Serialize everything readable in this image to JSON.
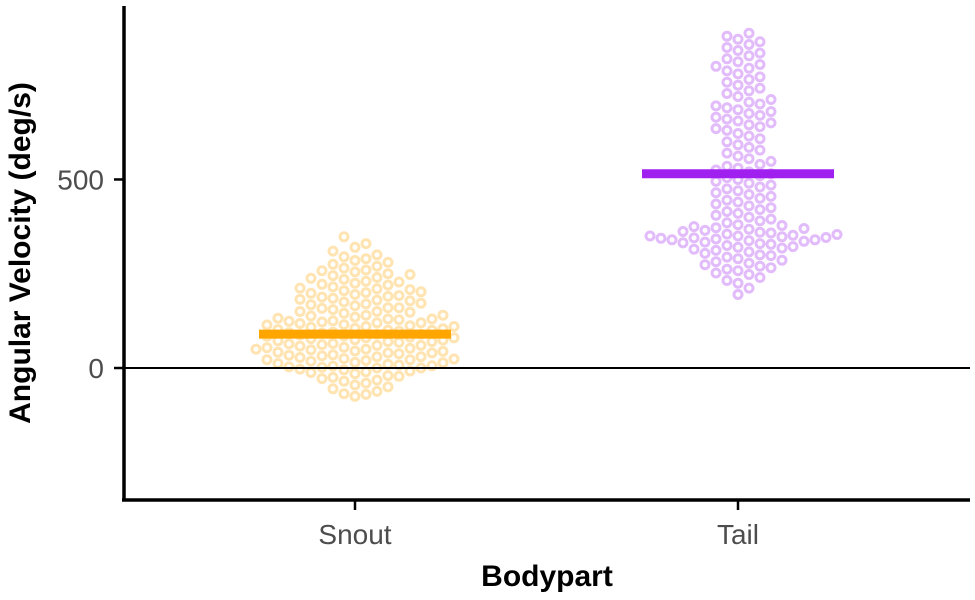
{
  "chart_data": {
    "type": "scatter",
    "subtype": "beeswarm",
    "xlabel": "Bodypart",
    "ylabel": "Angular Velocity (deg/s)",
    "categories": [
      "Snout",
      "Tail"
    ],
    "yticks": [
      0,
      500
    ],
    "ylim": [
      -350,
      960
    ],
    "grid": false,
    "reference_line_y": 0,
    "series": [
      {
        "name": "Snout",
        "color": "#FFA500",
        "mean": 90,
        "values": [
          -75,
          -70,
          -68,
          -62,
          -55,
          -50,
          -45,
          -40,
          -35,
          -32,
          -28,
          -25,
          -22,
          -20,
          -15,
          -12,
          -10,
          -8,
          -5,
          -3,
          0,
          0,
          2,
          3,
          5,
          6,
          8,
          10,
          12,
          14,
          15,
          18,
          20,
          22,
          22,
          24,
          25,
          28,
          30,
          30,
          32,
          34,
          35,
          38,
          40,
          40,
          42,
          44,
          45,
          48,
          50,
          50,
          52,
          54,
          55,
          58,
          60,
          60,
          62,
          64,
          65,
          68,
          70,
          70,
          72,
          74,
          75,
          78,
          80,
          80,
          82,
          84,
          85,
          88,
          90,
          90,
          92,
          94,
          95,
          98,
          100,
          100,
          102,
          104,
          105,
          108,
          110,
          110,
          112,
          114,
          115,
          118,
          120,
          120,
          122,
          124,
          125,
          128,
          130,
          130,
          132,
          135,
          138,
          140,
          140,
          145,
          148,
          150,
          150,
          155,
          158,
          160,
          160,
          165,
          168,
          170,
          172,
          175,
          178,
          180,
          182,
          185,
          188,
          190,
          192,
          195,
          198,
          200,
          202,
          205,
          208,
          210,
          212,
          215,
          220,
          222,
          225,
          228,
          230,
          235,
          238,
          240,
          245,
          248,
          250,
          255,
          258,
          260,
          265,
          270,
          275,
          280,
          285,
          290,
          295,
          300,
          310,
          320,
          330,
          348
        ]
      },
      {
        "name": "Tail",
        "color": "#A020F0",
        "mean": 515,
        "values": [
          195,
          212,
          225,
          232,
          240,
          248,
          252,
          258,
          262,
          266,
          270,
          274,
          278,
          282,
          286,
          290,
          294,
          298,
          300,
          304,
          308,
          312,
          315,
          318,
          320,
          322,
          325,
          328,
          330,
          332,
          334,
          336,
          338,
          340,
          340,
          342,
          344,
          345,
          346,
          348,
          350,
          350,
          352,
          354,
          355,
          358,
          360,
          362,
          365,
          368,
          370,
          372,
          375,
          378,
          380,
          385,
          390,
          395,
          400,
          405,
          410,
          415,
          420,
          425,
          430,
          435,
          440,
          445,
          450,
          455,
          460,
          465,
          470,
          475,
          480,
          485,
          490,
          495,
          500,
          505,
          510,
          515,
          520,
          525,
          530,
          535,
          540,
          548,
          555,
          562,
          570,
          578,
          585,
          592,
          600,
          608,
          615,
          622,
          630,
          635,
          640,
          645,
          650,
          655,
          660,
          665,
          670,
          675,
          680,
          685,
          690,
          695,
          700,
          705,
          712,
          720,
          728,
          735,
          742,
          750,
          758,
          765,
          772,
          780,
          788,
          795,
          800,
          805,
          812,
          820,
          828,
          835,
          842,
          850,
          858,
          865,
          872,
          880,
          888
        ]
      }
    ]
  }
}
